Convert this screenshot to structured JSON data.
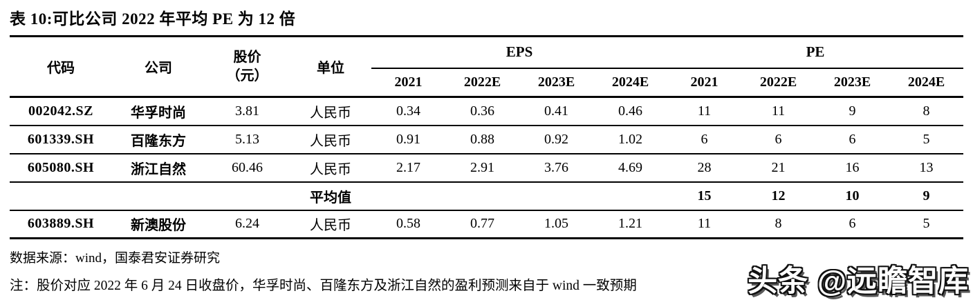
{
  "title": "表 10:可比公司 2022 年平均 PE 为 12 倍",
  "table": {
    "headers": {
      "code": "代码",
      "company": "公司",
      "price_line1": "股价",
      "price_line2": "（元）",
      "unit": "单位",
      "eps_group": "EPS",
      "pe_group": "PE",
      "eps_years": [
        "2021",
        "2022E",
        "2023E",
        "2024E"
      ],
      "pe_years": [
        "2021",
        "2022E",
        "2023E",
        "2024E"
      ]
    },
    "rows": [
      {
        "code": "002042.SZ",
        "company": "华孚时尚",
        "price": "3.81",
        "unit": "人民币",
        "eps": [
          "0.34",
          "0.36",
          "0.41",
          "0.46"
        ],
        "pe": [
          "11",
          "11",
          "9",
          "8"
        ]
      },
      {
        "code": "601339.SH",
        "company": "百隆东方",
        "price": "5.13",
        "unit": "人民币",
        "eps": [
          "0.91",
          "0.88",
          "0.92",
          "1.02"
        ],
        "pe": [
          "6",
          "6",
          "6",
          "5"
        ]
      },
      {
        "code": "605080.SH",
        "company": "浙江自然",
        "price": "60.46",
        "unit": "人民币",
        "eps": [
          "2.17",
          "2.91",
          "3.76",
          "4.69"
        ],
        "pe": [
          "28",
          "21",
          "16",
          "13"
        ]
      },
      {
        "code": "",
        "company": "",
        "price": "",
        "unit": "平均值",
        "eps": [
          "",
          "",
          "",
          ""
        ],
        "pe": [
          "15",
          "12",
          "10",
          "9"
        ]
      },
      {
        "code": "603889.SH",
        "company": "新澳股份",
        "price": "6.24",
        "unit": "人民币",
        "eps": [
          "0.58",
          "0.77",
          "1.05",
          "1.21"
        ],
        "pe": [
          "11",
          "8",
          "6",
          "5"
        ]
      }
    ]
  },
  "footnotes": {
    "source": "数据来源：wind，国泰君安证券研究",
    "note": "注：股价对应 2022 年 6 月 24 日收盘价，华孚时尚、百隆东方及浙江自然的盈利预测来自于 wind 一致预期"
  },
  "watermark": "头条 @远瞻智库"
}
